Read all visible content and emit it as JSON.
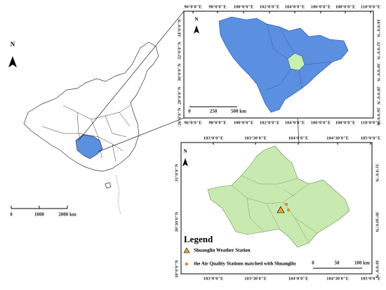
{
  "overview_map": {
    "north": "N",
    "scale_labels": [
      "0",
      "1000",
      "2000 km"
    ]
  },
  "province_map": {
    "north": "N",
    "lon_labels": [
      "96°0'0\"E",
      "98°0'0\"E",
      "100°0'0\"E",
      "102°0'0\"E",
      "104°0'0\"E",
      "106°0'0\"E",
      "108°0'0\"E",
      "110°0'0\"E"
    ],
    "lat_labels": [
      "34°0'0\"N",
      "32°0'0\"N",
      "30°0'0\"N",
      "28°0'0\"N",
      "26°0'0\"N"
    ],
    "scale_labels": [
      "0",
      "250",
      "500 km"
    ]
  },
  "city_map": {
    "north": "N",
    "lon_labels": [
      "103°0'0\"E",
      "103°30'0\"E",
      "104°0'0\"E",
      "104°30'0\"E",
      "105°0'0\"E"
    ],
    "lat_labels": [
      "31°0'0\"N",
      "30°30'0\"N",
      "30°0'0\"N"
    ],
    "scale_labels": [
      "0",
      "50",
      "100 km"
    ],
    "legend": {
      "title": "Legend",
      "items": [
        "Shuangliu Weather Station",
        "the Air Quality Stations matched with Shuangliu"
      ]
    }
  }
}
